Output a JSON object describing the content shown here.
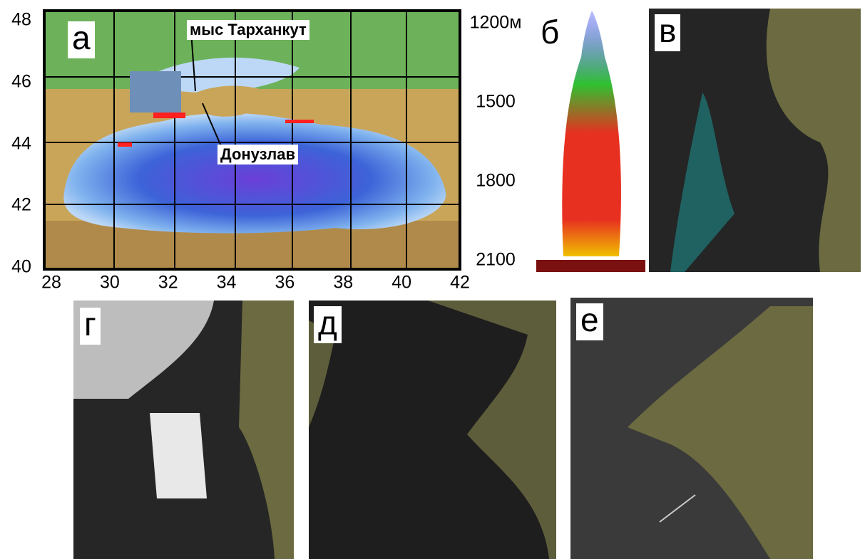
{
  "panels": [
    "а",
    "б",
    "в",
    "г",
    "д",
    "е"
  ],
  "map": {
    "lat_ticks": [
      48,
      46,
      44,
      42,
      40
    ],
    "lon_ticks": [
      28,
      30,
      32,
      34,
      36,
      38,
      40,
      42
    ],
    "annotations": [
      "мыс Тарханкут",
      "Донузлав"
    ]
  },
  "depth_axis": {
    "ticks": [
      {
        "value": 1200,
        "label": "1200м"
      },
      1500,
      1800,
      2100
    ]
  }
}
